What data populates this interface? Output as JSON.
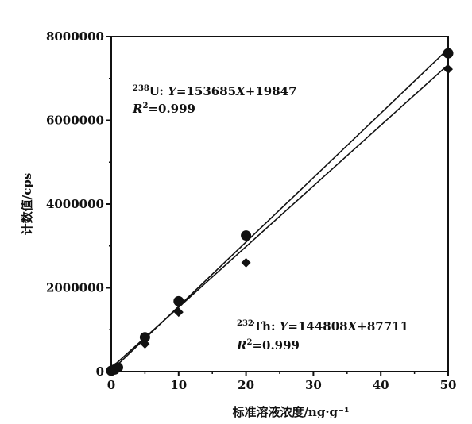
{
  "chart_data": {
    "type": "scatter",
    "xlabel": "标准溶液浓度/ng·g⁻¹",
    "ylabel": "计数值/cps",
    "xlim": [
      0,
      50
    ],
    "ylim": [
      0,
      8000000
    ],
    "x_ticks": [
      "0",
      "10",
      "20",
      "30",
      "40",
      "50"
    ],
    "y_ticks": [
      "0",
      "2000000",
      "4000000",
      "6000000",
      "8000000"
    ],
    "grid": false,
    "series": [
      {
        "name": "238U",
        "marker": "circle",
        "x": [
          0,
          0.5,
          1,
          5,
          10,
          20,
          50
        ],
        "y": [
          20000,
          50000,
          100000,
          820000,
          1680000,
          3250000,
          7600000
        ],
        "fit": {
          "slope": 153685,
          "intercept": 19847
        }
      },
      {
        "name": "232Th",
        "marker": "diamond",
        "x": [
          0,
          0.5,
          1,
          5,
          10,
          20,
          50
        ],
        "y": [
          15000,
          40000,
          80000,
          660000,
          1420000,
          2600000,
          7220000
        ],
        "fit": {
          "slope": 144808,
          "intercept": 87711
        }
      }
    ],
    "annotations": [
      {
        "isotope_mass": "238",
        "element": "U: ",
        "y_var": "Y",
        "eq_rhs_a": "=153685",
        "x_var": "X",
        "eq_rhs_b": "+19847",
        "r_var": "R",
        "r_exp": "2",
        "r_val": "=0.999"
      },
      {
        "isotope_mass": "232",
        "element": "Th: ",
        "y_var": "Y",
        "eq_rhs_a": "=144808",
        "x_var": "X",
        "eq_rhs_b": "+87711",
        "r_var": "R",
        "r_exp": "2",
        "r_val": "=0.999"
      }
    ]
  }
}
